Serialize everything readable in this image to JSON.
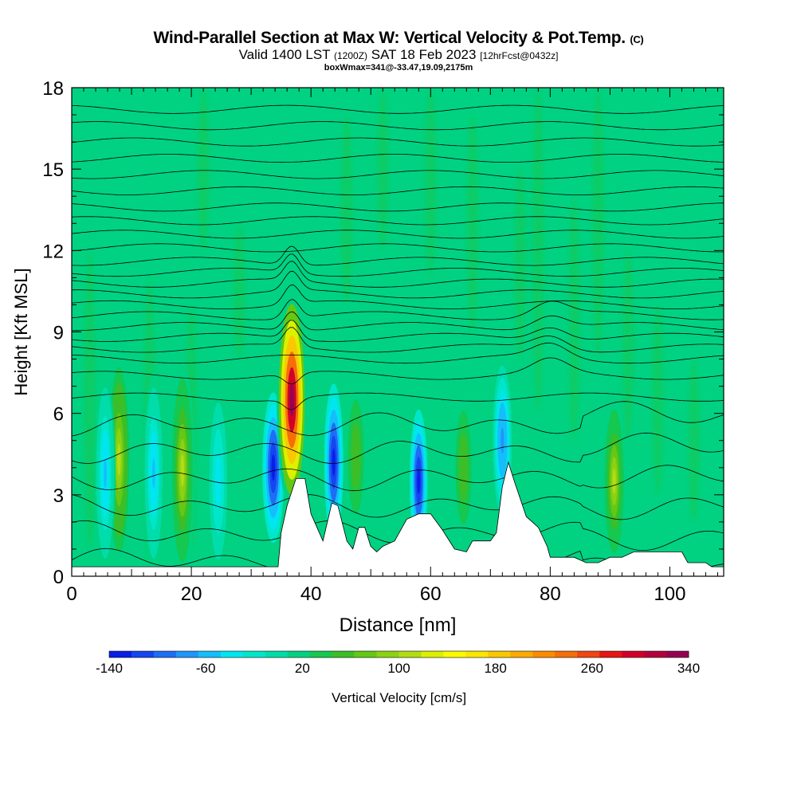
{
  "header": {
    "title": "Wind-Parallel Section at Max W: Vertical Velocity & Pot.Temp.",
    "copyright": "(C)",
    "valid_prefix": "Valid 1400 LST",
    "valid_utc": "(1200Z)",
    "valid_date": "SAT 18 Feb 2023",
    "forecast": "[12hrFcst@0432z]",
    "box_info": "boxWmax=341@-33.47,19.09,2175m"
  },
  "chart_data": {
    "type": "heatmap",
    "xlabel": "Distance [nm]",
    "ylabel": "Height [Kft MSL]",
    "xlim": [
      0,
      109
    ],
    "ylim": [
      0,
      18
    ],
    "x_ticks": [
      "0",
      "20",
      "40",
      "60",
      "80",
      "100"
    ],
    "y_ticks": [
      "0",
      "3",
      "6",
      "9",
      "12",
      "15",
      "18"
    ],
    "colorbar": {
      "label": "Vertical Velocity [cm/s]",
      "min": -140,
      "max": 340,
      "tick_labels": [
        "-140",
        "-60",
        "20",
        "100",
        "180",
        "260",
        "340"
      ],
      "colors": [
        "#0a1ee6",
        "#1446f0",
        "#1e6ef5",
        "#1e96fa",
        "#14befa",
        "#00e6f0",
        "#00e6c8",
        "#00dcaa",
        "#00d282",
        "#14c850",
        "#3cbe28",
        "#64c814",
        "#8cd214",
        "#b4dc14",
        "#dcf000",
        "#fafa00",
        "#fae600",
        "#fac800",
        "#faaa00",
        "#fa8c00",
        "#f56e0a",
        "#f04614",
        "#e61414",
        "#d20028",
        "#b4003c",
        "#960050"
      ]
    },
    "terrain_top_kft": [
      [
        0,
        0.35
      ],
      [
        10,
        0.35
      ],
      [
        20,
        0.35
      ],
      [
        30,
        0.35
      ],
      [
        34.5,
        0.35
      ],
      [
        35,
        1.6
      ],
      [
        36,
        2.6
      ],
      [
        37.5,
        3.6
      ],
      [
        39,
        3.6
      ],
      [
        40,
        2.3
      ],
      [
        41,
        1.8
      ],
      [
        42,
        1.3
      ],
      [
        43.5,
        2.7
      ],
      [
        44.5,
        2.6
      ],
      [
        46,
        1.3
      ],
      [
        47,
        1.0
      ],
      [
        48,
        1.8
      ],
      [
        49,
        1.8
      ],
      [
        50,
        1.1
      ],
      [
        51,
        0.9
      ],
      [
        52,
        1.1
      ],
      [
        54,
        1.3
      ],
      [
        56,
        2.1
      ],
      [
        58,
        2.3
      ],
      [
        60,
        2.3
      ],
      [
        62,
        1.7
      ],
      [
        64,
        1.0
      ],
      [
        66,
        0.9
      ],
      [
        67,
        1.3
      ],
      [
        68,
        1.3
      ],
      [
        70,
        1.3
      ],
      [
        71,
        1.6
      ],
      [
        72,
        3.3
      ],
      [
        73,
        4.2
      ],
      [
        74,
        3.5
      ],
      [
        76,
        2.2
      ],
      [
        78,
        1.8
      ],
      [
        79.5,
        1.1
      ],
      [
        80,
        0.7
      ],
      [
        82,
        0.7
      ],
      [
        84,
        0.7
      ],
      [
        86,
        0.5
      ],
      [
        88,
        0.5
      ],
      [
        90,
        0.7
      ],
      [
        92,
        0.7
      ],
      [
        94,
        0.9
      ],
      [
        96,
        0.9
      ],
      [
        98,
        0.9
      ],
      [
        100,
        0.9
      ],
      [
        102,
        0.9
      ],
      [
        103,
        0.5
      ],
      [
        106,
        0.5
      ],
      [
        107,
        0.35
      ],
      [
        109,
        0.35
      ]
    ],
    "vertical_velocity_features_cm_s": [
      {
        "x": 7.9,
        "z": 4.3,
        "w": 110
      },
      {
        "x": 5.6,
        "z": 3.8,
        "w": -60
      },
      {
        "x": 13.7,
        "z": 3.8,
        "w": -60
      },
      {
        "x": 18.5,
        "z": 3.9,
        "w": 100
      },
      {
        "x": 24.5,
        "z": 3.5,
        "w": -40
      },
      {
        "x": 33.7,
        "z": 4.0,
        "w": -140
      },
      {
        "x": 36.8,
        "z": 6.5,
        "w": 340
      },
      {
        "x": 43.8,
        "z": 4.2,
        "w": -140
      },
      {
        "x": 47.5,
        "z": 4.4,
        "w": 60
      },
      {
        "x": 58.0,
        "z": 3.5,
        "w": -140
      },
      {
        "x": 65.5,
        "z": 4.0,
        "w": 60
      },
      {
        "x": 72.0,
        "z": 5.0,
        "w": -80
      },
      {
        "x": 90.7,
        "z": 3.5,
        "w": 100
      }
    ],
    "isentropes_kft": [
      0.6,
      1.6,
      2.6,
      3.6,
      4.6,
      5.6,
      6.6,
      7.4,
      8.0,
      8.4,
      8.8,
      9.2,
      9.6,
      10.0,
      10.4,
      10.8,
      11.2,
      11.6,
      12.1,
      12.6,
      13.1,
      13.6,
      14.2,
      14.8,
      15.4,
      16.0,
      16.6,
      17.2
    ]
  }
}
